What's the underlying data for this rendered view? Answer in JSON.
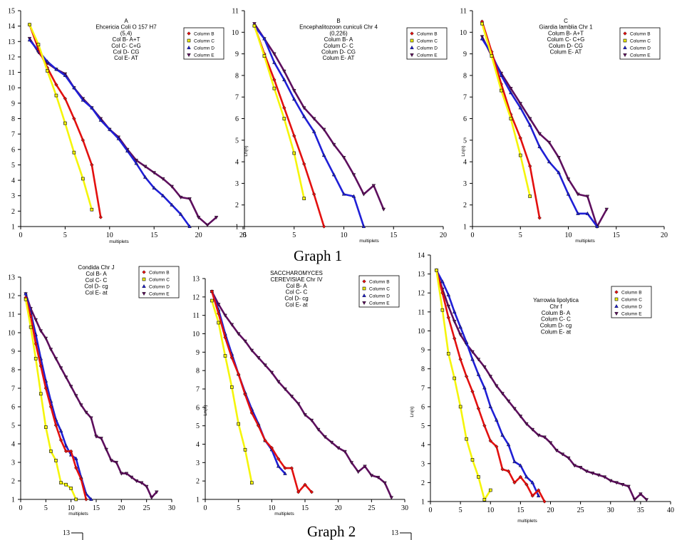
{
  "captions": {
    "graph1": "Graph 1",
    "graph2": "Graph 2"
  },
  "colors": {
    "Column B": "#e3100f",
    "Column C": "#f5f50a",
    "Column D": "#1f1fd6",
    "Column E": "#5e0f5e"
  },
  "bottom_fragments": {
    "left_tick": "13",
    "right_tick": "13"
  },
  "chart_data": [
    {
      "type": "line",
      "title_lines": [
        "A",
        "Ehcericia Coli O 157 H7",
        "(5,4)",
        "Col B- A+T",
        "Col C- C+G",
        "Col D- CG",
        "Col E- AT"
      ],
      "xlabel": "multiplets",
      "ylabel": "",
      "xlim": [
        0,
        25
      ],
      "ylim": [
        1,
        15
      ],
      "xticks": [
        0,
        5,
        10,
        15,
        20,
        25
      ],
      "xtick_labels": [
        "0",
        "5",
        "10",
        "15",
        "20",
        "25"
      ],
      "yticks": [
        1,
        2,
        3,
        4,
        5,
        6,
        7,
        8,
        9,
        10,
        11,
        12,
        13,
        14,
        15
      ],
      "legend": [
        "Column B",
        "Column C",
        "Column D",
        "Column E"
      ],
      "series": [
        {
          "name": "Column B",
          "x": [
            1,
            2,
            3,
            4,
            5,
            6,
            7,
            8,
            9
          ],
          "y": [
            14.1,
            12.5,
            11.3,
            10.2,
            9.3,
            8.0,
            6.6,
            5.0,
            1.6
          ]
        },
        {
          "name": "Column C",
          "x": [
            1,
            2,
            3,
            4,
            5,
            6,
            7,
            8
          ],
          "y": [
            14.1,
            12.8,
            11.1,
            9.5,
            7.7,
            5.8,
            4.1,
            2.1
          ]
        },
        {
          "name": "Column D",
          "x": [
            1,
            2,
            3,
            4,
            5,
            6,
            7,
            8,
            9,
            10,
            11,
            12,
            13,
            14,
            15,
            16,
            17,
            18,
            19
          ],
          "y": [
            13.1,
            12.4,
            11.7,
            11.2,
            10.8,
            10.0,
            9.2,
            8.7,
            7.9,
            7.3,
            6.7,
            5.9,
            5.1,
            4.2,
            3.5,
            3.0,
            2.4,
            1.8,
            1.0
          ]
        },
        {
          "name": "Column E",
          "x": [
            1,
            2,
            3,
            4,
            5,
            6,
            7,
            8,
            9,
            10,
            11,
            12,
            13,
            14,
            15,
            16,
            17,
            18,
            19,
            20,
            21,
            22
          ],
          "y": [
            13.2,
            12.3,
            11.6,
            11.2,
            10.9,
            10.0,
            9.3,
            8.7,
            8.0,
            7.3,
            6.8,
            6.0,
            5.3,
            4.9,
            4.5,
            4.1,
            3.6,
            2.9,
            2.8,
            1.6,
            1.1,
            1.6
          ]
        }
      ]
    },
    {
      "type": "line",
      "title_lines": [
        "B",
        "Encephalitozoon cuniculi Chr 4",
        "(0,226)",
        "Colum B- A",
        "Colum C- C",
        "Colum D- CG",
        "Colum E- AT"
      ],
      "xlabel": "multiplets",
      "ylabel": "Ln(n)",
      "xlim": [
        0,
        20
      ],
      "ylim": [
        1,
        11
      ],
      "xticks": [
        0,
        5,
        10,
        15,
        20
      ],
      "xtick_labels": [
        "0",
        "5",
        "10",
        "15",
        "20"
      ],
      "yticks": [
        1,
        2,
        3,
        4,
        5,
        6,
        7,
        8,
        9,
        10,
        11
      ],
      "legend": [
        "Column B",
        "Column C",
        "Column D",
        "Column E"
      ],
      "series": [
        {
          "name": "Column B",
          "x": [
            1,
            2,
            3,
            4,
            5,
            6,
            7,
            8
          ],
          "y": [
            10.3,
            9.0,
            7.8,
            6.5,
            5.2,
            3.9,
            2.5,
            1.0
          ]
        },
        {
          "name": "Column C",
          "x": [
            1,
            2,
            3,
            4,
            5,
            6
          ],
          "y": [
            10.3,
            8.9,
            7.4,
            6.0,
            4.4,
            2.3
          ]
        },
        {
          "name": "Column D",
          "x": [
            1,
            2,
            3,
            4,
            5,
            6,
            7,
            8,
            9,
            10,
            11,
            12
          ],
          "y": [
            10.3,
            9.7,
            8.6,
            7.8,
            6.9,
            6.1,
            5.4,
            4.3,
            3.4,
            2.5,
            2.4,
            1.0
          ]
        },
        {
          "name": "Column E",
          "x": [
            1,
            2,
            3,
            4,
            5,
            6,
            7,
            8,
            9,
            10,
            11,
            12,
            13,
            14
          ],
          "y": [
            10.4,
            9.7,
            9.0,
            8.2,
            7.3,
            6.5,
            6.0,
            5.5,
            4.8,
            4.2,
            3.4,
            2.5,
            2.9,
            1.8
          ]
        }
      ]
    },
    {
      "type": "line",
      "title_lines": [
        "C",
        "Giardia lamblia Chr 1",
        "Colum B- A+T",
        "Colum C- C+G",
        "Colum D- CG",
        "Colum E- AT"
      ],
      "xlabel": "multiplets",
      "ylabel": "Ln(n)",
      "xlim": [
        0,
        20
      ],
      "ylim": [
        1,
        11
      ],
      "xticks": [
        0,
        5,
        10,
        15,
        20
      ],
      "xtick_labels": [
        "0",
        "5",
        "10",
        "15",
        "20"
      ],
      "yticks": [
        1,
        2,
        3,
        4,
        5,
        6,
        7,
        8,
        9,
        10,
        11
      ],
      "legend": [
        "Column B",
        "Column C",
        "Column D",
        "Column E"
      ],
      "series": [
        {
          "name": "Column B",
          "x": [
            1,
            2,
            3,
            4,
            5,
            6,
            7
          ],
          "y": [
            10.5,
            9.1,
            7.6,
            6.2,
            5.1,
            3.8,
            1.4
          ]
        },
        {
          "name": "Column C",
          "x": [
            1,
            2,
            3,
            4,
            5,
            6
          ],
          "y": [
            10.4,
            8.9,
            7.3,
            6.0,
            4.3,
            2.4
          ]
        },
        {
          "name": "Column D",
          "x": [
            1,
            2,
            3,
            4,
            5,
            6,
            7,
            8,
            9,
            10,
            11,
            12,
            13
          ],
          "y": [
            9.7,
            9.0,
            8.0,
            7.2,
            6.5,
            5.7,
            4.7,
            4.0,
            3.5,
            2.5,
            1.6,
            1.6,
            1.0
          ]
        },
        {
          "name": "Column E",
          "x": [
            1,
            2,
            3,
            4,
            5,
            6,
            7,
            8,
            9,
            10,
            11,
            12,
            13,
            14
          ],
          "y": [
            9.8,
            8.9,
            8.1,
            7.4,
            6.7,
            6.0,
            5.3,
            4.9,
            4.2,
            3.2,
            2.5,
            2.4,
            1.0,
            1.8
          ]
        }
      ]
    },
    {
      "type": "line",
      "title_lines": [
        "Condida Chr J",
        "Col B- A",
        "Col C- C",
        "Col D- cg",
        "Col E- at"
      ],
      "xlabel": "multiplets",
      "ylabel": "",
      "xlim": [
        0,
        30
      ],
      "ylim": [
        1,
        13
      ],
      "xticks": [
        0,
        5,
        10,
        15,
        20,
        25,
        30
      ],
      "xtick_labels": [
        "0",
        "5",
        "10",
        "15",
        "20",
        "25",
        "30"
      ],
      "yticks": [
        1,
        2,
        3,
        4,
        5,
        6,
        7,
        8,
        9,
        10,
        11,
        12,
        13
      ],
      "legend": [
        "Column B",
        "Column C",
        "Column D",
        "Column E"
      ],
      "series": [
        {
          "name": "Column B",
          "x": [
            1,
            2,
            3,
            4,
            5,
            6,
            7,
            8,
            9,
            10,
            11,
            12,
            13
          ],
          "y": [
            11.9,
            10.9,
            9.4,
            8.2,
            7.0,
            6.0,
            5.0,
            4.2,
            3.6,
            3.6,
            2.7,
            2.1,
            1.0
          ]
        },
        {
          "name": "Column C",
          "x": [
            1,
            2,
            3,
            4,
            5,
            6,
            7,
            8,
            9,
            10,
            11
          ],
          "y": [
            11.8,
            10.3,
            8.6,
            6.7,
            4.9,
            3.6,
            3.1,
            1.9,
            1.8,
            1.6,
            1.0
          ]
        },
        {
          "name": "Column D",
          "x": [
            1,
            2,
            3,
            4,
            5,
            6,
            7,
            8,
            9,
            10,
            11,
            12,
            13,
            14
          ],
          "y": [
            12.1,
            11.1,
            9.9,
            8.6,
            7.4,
            6.3,
            5.3,
            4.7,
            3.9,
            3.4,
            3.2,
            2.2,
            1.3,
            1.0
          ]
        },
        {
          "name": "Column E",
          "x": [
            1,
            2,
            3,
            4,
            5,
            6,
            7,
            8,
            9,
            10,
            11,
            12,
            13,
            14,
            15,
            16,
            17,
            18,
            19,
            20,
            21,
            22,
            23,
            24,
            25,
            26,
            27
          ],
          "y": [
            12.1,
            11.3,
            10.7,
            10.1,
            9.7,
            9.1,
            8.6,
            8.1,
            7.6,
            7.1,
            6.6,
            6.1,
            5.7,
            5.4,
            4.4,
            4.3,
            3.7,
            3.1,
            3.0,
            2.4,
            2.4,
            2.2,
            2.0,
            1.9,
            1.7,
            1.1,
            1.4
          ]
        }
      ]
    },
    {
      "type": "line",
      "title_lines": [
        "SACCHAROMYCES",
        "CEREVISIAE Chr IV",
        "Col B- A",
        "Col C- C",
        "Col D- cg",
        "Col E- at"
      ],
      "xlabel": "multiplets",
      "ylabel": "Ln(n)",
      "xlim": [
        0,
        30
      ],
      "ylim": [
        1,
        13
      ],
      "xticks": [
        0,
        5,
        10,
        15,
        20,
        25,
        30
      ],
      "xtick_labels": [
        "0",
        "5",
        "10",
        "15",
        "20",
        "25",
        "30"
      ],
      "yticks": [
        1,
        2,
        3,
        4,
        5,
        6,
        7,
        8,
        9,
        10,
        11,
        12,
        13
      ],
      "legend": [
        "Column B",
        "Column C",
        "Column D",
        "Column E"
      ],
      "series": [
        {
          "name": "Column B",
          "x": [
            1,
            2,
            3,
            4,
            5,
            6,
            7,
            8,
            9,
            10,
            11,
            12,
            13,
            14,
            15,
            16
          ],
          "y": [
            12.3,
            11.1,
            9.8,
            8.7,
            7.8,
            6.7,
            5.7,
            5.0,
            4.2,
            3.8,
            3.2,
            2.7,
            2.7,
            1.4,
            1.8,
            1.4
          ]
        },
        {
          "name": "Column C",
          "x": [
            1,
            2,
            3,
            4,
            5,
            6,
            7
          ],
          "y": [
            11.8,
            10.6,
            8.8,
            7.1,
            5.1,
            3.7,
            1.9
          ]
        },
        {
          "name": "Column D",
          "x": [
            1,
            2,
            3,
            4,
            5,
            6,
            7,
            8,
            9,
            10,
            11,
            12
          ],
          "y": [
            12.3,
            11.3,
            10.0,
            8.9,
            7.8,
            6.8,
            5.9,
            5.1,
            4.2,
            3.7,
            2.8,
            2.4
          ]
        },
        {
          "name": "Column E",
          "x": [
            1,
            2,
            3,
            4,
            5,
            6,
            7,
            8,
            9,
            10,
            11,
            12,
            13,
            14,
            15,
            16,
            17,
            18,
            19,
            20,
            21,
            22,
            23,
            24,
            25,
            26,
            27,
            28
          ],
          "y": [
            12.3,
            11.6,
            11.0,
            10.5,
            10.0,
            9.6,
            9.1,
            8.7,
            8.3,
            7.9,
            7.4,
            7.0,
            6.6,
            6.2,
            5.6,
            5.3,
            4.8,
            4.4,
            4.1,
            3.8,
            3.6,
            3.0,
            2.5,
            2.8,
            2.3,
            2.2,
            1.9,
            1.1
          ]
        }
      ]
    },
    {
      "type": "line",
      "title_lines": [
        "Yarrowia lipolytica",
        "Chr f",
        "Colum B- A",
        "Colum C- C",
        "Colum D- cg",
        "Colum E- at"
      ],
      "xlabel": "multiplets",
      "ylabel": "Ln(n)",
      "xlim": [
        0,
        40
      ],
      "ylim": [
        1,
        14
      ],
      "xticks": [
        0,
        5,
        10,
        15,
        20,
        25,
        30,
        35,
        40
      ],
      "xtick_labels": [
        "0",
        "5",
        "10",
        "15",
        "20",
        "25",
        "30",
        "35",
        "40"
      ],
      "yticks": [
        1,
        2,
        3,
        4,
        5,
        6,
        7,
        8,
        9,
        10,
        11,
        12,
        13,
        14
      ],
      "legend": [
        "Column B",
        "Column C",
        "Column D",
        "Column E"
      ],
      "series": [
        {
          "name": "Column B",
          "x": [
            1,
            2,
            3,
            4,
            5,
            6,
            7,
            8,
            9,
            10,
            11,
            12,
            13,
            14,
            15,
            16,
            17,
            18,
            19
          ],
          "y": [
            13.2,
            12.0,
            10.7,
            9.6,
            8.5,
            7.6,
            6.8,
            5.9,
            5.0,
            4.2,
            3.9,
            2.7,
            2.6,
            2.0,
            2.3,
            1.9,
            1.3,
            1.6,
            1.0
          ]
        },
        {
          "name": "Column C",
          "x": [
            1,
            2,
            3,
            4,
            5,
            6,
            7,
            8,
            9,
            10
          ],
          "y": [
            13.2,
            11.1,
            8.8,
            7.5,
            6.0,
            4.3,
            3.2,
            2.3,
            1.1,
            1.6
          ]
        },
        {
          "name": "Column D",
          "x": [
            1,
            2,
            3,
            4,
            5,
            6,
            7,
            8,
            9,
            10,
            11,
            12,
            13,
            14,
            15,
            16,
            17,
            18
          ],
          "y": [
            13.2,
            12.6,
            11.9,
            11.0,
            10.2,
            9.4,
            8.5,
            7.7,
            7.0,
            6.0,
            5.3,
            4.5,
            4.0,
            3.1,
            2.9,
            2.3,
            2.0,
            1.3
          ]
        },
        {
          "name": "Column E",
          "x": [
            1,
            2,
            3,
            4,
            5,
            6,
            7,
            8,
            9,
            10,
            11,
            12,
            13,
            14,
            15,
            16,
            17,
            18,
            19,
            20,
            21,
            22,
            23,
            24,
            25,
            26,
            27,
            28,
            29,
            30,
            31,
            32,
            33,
            34,
            35,
            36
          ],
          "y": [
            13.2,
            12.2,
            11.3,
            10.5,
            9.8,
            9.3,
            8.9,
            8.5,
            8.1,
            7.6,
            7.1,
            6.7,
            6.3,
            5.9,
            5.5,
            5.1,
            4.8,
            4.5,
            4.4,
            4.1,
            3.7,
            3.5,
            3.3,
            2.9,
            2.8,
            2.6,
            2.5,
            2.4,
            2.3,
            2.1,
            2.0,
            1.9,
            1.8,
            1.1,
            1.4,
            1.1
          ]
        }
      ]
    }
  ]
}
